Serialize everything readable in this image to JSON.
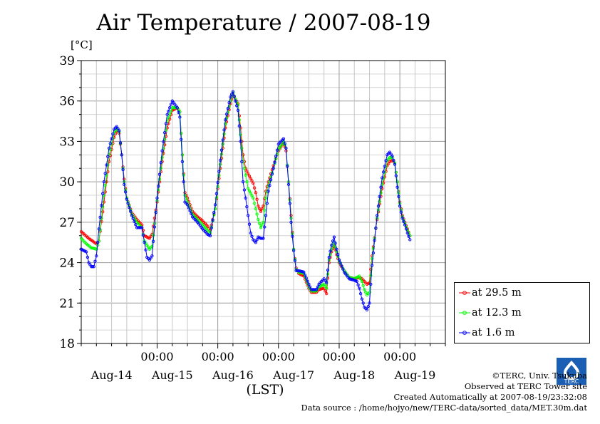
{
  "title": "Air Temperature / 2007-08-19",
  "y_unit": "[°C]",
  "x_unit": "(LST)",
  "credits": [
    "©TERC, Univ. Tsukuba",
    "Observed at TERC Tower site",
    "Created Automatically at 2007-08-19/23:32:08",
    "Data source : /home/hojyo/new/TERC-data/sorted_data/MET.30m.dat"
  ],
  "logo_text": "TERC",
  "chart_data": {
    "type": "line",
    "title": "Air Temperature / 2007-08-19",
    "ylabel": "[°C]",
    "xlabel": "(LST)",
    "ylim": [
      18,
      39
    ],
    "yticks": [
      18,
      21,
      24,
      27,
      30,
      33,
      36,
      39
    ],
    "xlim": [
      0,
      144
    ],
    "x_unit_note": "hours from Aug-13 18:00 LST",
    "x_tick_labels": [
      "00:00",
      "00:00",
      "00:00",
      "00:00",
      "00:00"
    ],
    "x_tick_positions": [
      30,
      54,
      78,
      102,
      126
    ],
    "date_labels": [
      "Aug-14",
      "Aug-15",
      "Aug-16",
      "Aug-17",
      "Aug-18",
      "Aug-19"
    ],
    "date_label_positions": [
      12,
      36,
      60,
      84,
      108,
      132
    ],
    "grid": true,
    "legend_position": "bottom-right, outside plot",
    "series": [
      {
        "name": "at 29.5 m",
        "color": "#ff0000",
        "points": [
          [
            0,
            26.3
          ],
          [
            3,
            25.8
          ],
          [
            6,
            25.4
          ],
          [
            7,
            25.6
          ],
          [
            9,
            28.5
          ],
          [
            11,
            31.5
          ],
          [
            13,
            33.3
          ],
          [
            14,
            33.8
          ],
          [
            15,
            33.6
          ],
          [
            16,
            32.0
          ],
          [
            17,
            30.2
          ],
          [
            18,
            28.8
          ],
          [
            20,
            27.7
          ],
          [
            22,
            27.2
          ],
          [
            24,
            26.8
          ],
          [
            25,
            26.0
          ],
          [
            27,
            25.8
          ],
          [
            28,
            26.1
          ],
          [
            30,
            28.5
          ],
          [
            32,
            31.5
          ],
          [
            34,
            34.0
          ],
          [
            36,
            35.3
          ],
          [
            38,
            35.5
          ],
          [
            39,
            35.2
          ],
          [
            40,
            32.0
          ],
          [
            41,
            29.2
          ],
          [
            42,
            28.8
          ],
          [
            44,
            27.8
          ],
          [
            46,
            27.4
          ],
          [
            48,
            27.1
          ],
          [
            50,
            26.7
          ],
          [
            51,
            26.4
          ],
          [
            53,
            28.0
          ],
          [
            55,
            31.0
          ],
          [
            57,
            34.0
          ],
          [
            59,
            35.8
          ],
          [
            60,
            36.5
          ],
          [
            62,
            35.8
          ],
          [
            63,
            34.0
          ],
          [
            64,
            32.0
          ],
          [
            65,
            31.0
          ],
          [
            66,
            30.6
          ],
          [
            68,
            29.9
          ],
          [
            69,
            29.2
          ],
          [
            70,
            28.2
          ],
          [
            71,
            27.8
          ],
          [
            72,
            28.2
          ],
          [
            73,
            29.3
          ],
          [
            74,
            30.0
          ],
          [
            76,
            31.2
          ],
          [
            78,
            32.3
          ],
          [
            80,
            32.9
          ],
          [
            81,
            32.3
          ],
          [
            82,
            30.0
          ],
          [
            83,
            27.5
          ],
          [
            84,
            25.0
          ],
          [
            85,
            23.6
          ],
          [
            86,
            23.2
          ],
          [
            88,
            23.0
          ],
          [
            90,
            22.1
          ],
          [
            91,
            21.8
          ],
          [
            93,
            21.8
          ],
          [
            94,
            22.0
          ],
          [
            96,
            22.1
          ],
          [
            97,
            21.7
          ],
          [
            98,
            24.0
          ],
          [
            99,
            24.8
          ],
          [
            100,
            25.3
          ],
          [
            101,
            24.6
          ],
          [
            102,
            24.0
          ],
          [
            104,
            23.4
          ],
          [
            106,
            22.9
          ],
          [
            108,
            22.8
          ],
          [
            110,
            22.9
          ],
          [
            111,
            22.8
          ],
          [
            112,
            22.6
          ],
          [
            113,
            22.4
          ],
          [
            114,
            22.5
          ],
          [
            115,
            24.5
          ],
          [
            117,
            27.2
          ],
          [
            119,
            29.5
          ],
          [
            121,
            31.2
          ],
          [
            122,
            31.5
          ],
          [
            123,
            31.6
          ],
          [
            124,
            31.4
          ],
          [
            125,
            30.0
          ],
          [
            126,
            28.5
          ],
          [
            127,
            27.5
          ],
          [
            128,
            27.0
          ],
          [
            129,
            26.5
          ],
          [
            130,
            26.0
          ]
        ]
      },
      {
        "name": "at 12.3 m",
        "color": "#00ff00",
        "points": [
          [
            0,
            25.8
          ],
          [
            2,
            25.4
          ],
          [
            4,
            25.1
          ],
          [
            6,
            25.0
          ],
          [
            7,
            25.6
          ],
          [
            9,
            29.0
          ],
          [
            11,
            32.0
          ],
          [
            13,
            33.6
          ],
          [
            14,
            34.0
          ],
          [
            15,
            33.7
          ],
          [
            16,
            32.0
          ],
          [
            17,
            30.0
          ],
          [
            18,
            28.8
          ],
          [
            20,
            27.6
          ],
          [
            22,
            27.0
          ],
          [
            24,
            26.6
          ],
          [
            25,
            25.6
          ],
          [
            27,
            25.0
          ],
          [
            28,
            25.2
          ],
          [
            30,
            28.6
          ],
          [
            32,
            31.8
          ],
          [
            34,
            34.5
          ],
          [
            36,
            35.5
          ],
          [
            38,
            35.5
          ],
          [
            39,
            35.2
          ],
          [
            40,
            32.0
          ],
          [
            41,
            29.0
          ],
          [
            42,
            28.5
          ],
          [
            44,
            27.6
          ],
          [
            46,
            27.2
          ],
          [
            48,
            26.8
          ],
          [
            50,
            26.4
          ],
          [
            51,
            26.2
          ],
          [
            53,
            28.0
          ],
          [
            55,
            31.3
          ],
          [
            57,
            34.3
          ],
          [
            59,
            36.0
          ],
          [
            60,
            36.6
          ],
          [
            62,
            35.7
          ],
          [
            63,
            33.5
          ],
          [
            64,
            31.5
          ],
          [
            65,
            30.5
          ],
          [
            66,
            29.5
          ],
          [
            68,
            28.8
          ],
          [
            69,
            28.0
          ],
          [
            70,
            27.2
          ],
          [
            71,
            26.6
          ],
          [
            72,
            27.0
          ],
          [
            73,
            28.8
          ],
          [
            74,
            29.7
          ],
          [
            76,
            31.0
          ],
          [
            78,
            32.4
          ],
          [
            80,
            33.0
          ],
          [
            81,
            32.5
          ],
          [
            82,
            30.0
          ],
          [
            83,
            27.3
          ],
          [
            84,
            25.0
          ],
          [
            85,
            23.5
          ],
          [
            86,
            23.3
          ],
          [
            88,
            23.2
          ],
          [
            90,
            22.2
          ],
          [
            91,
            21.9
          ],
          [
            93,
            21.9
          ],
          [
            94,
            22.2
          ],
          [
            96,
            22.4
          ],
          [
            97,
            22.1
          ],
          [
            98,
            24.2
          ],
          [
            99,
            25.0
          ],
          [
            100,
            25.5
          ],
          [
            101,
            24.8
          ],
          [
            102,
            24.1
          ],
          [
            104,
            23.4
          ],
          [
            106,
            22.9
          ],
          [
            108,
            22.8
          ],
          [
            110,
            23.0
          ],
          [
            111,
            22.6
          ],
          [
            112,
            22.0
          ],
          [
            113,
            21.6
          ],
          [
            114,
            21.8
          ],
          [
            115,
            24.3
          ],
          [
            117,
            27.3
          ],
          [
            119,
            29.8
          ],
          [
            121,
            31.6
          ],
          [
            122,
            31.8
          ],
          [
            123,
            31.8
          ],
          [
            124,
            31.4
          ],
          [
            125,
            30.0
          ],
          [
            126,
            28.4
          ],
          [
            127,
            27.4
          ],
          [
            128,
            26.9
          ],
          [
            129,
            26.4
          ],
          [
            130,
            26.0
          ]
        ]
      },
      {
        "name": "at 1.6 m",
        "color": "#0000ff",
        "points": [
          [
            0,
            25.0
          ],
          [
            2,
            24.8
          ],
          [
            3,
            24.0
          ],
          [
            4,
            23.7
          ],
          [
            5,
            23.7
          ],
          [
            6,
            24.5
          ],
          [
            7,
            26.5
          ],
          [
            9,
            30.0
          ],
          [
            11,
            32.5
          ],
          [
            13,
            33.9
          ],
          [
            14,
            34.1
          ],
          [
            15,
            33.8
          ],
          [
            16,
            32.0
          ],
          [
            17,
            29.8
          ],
          [
            18,
            28.7
          ],
          [
            20,
            27.5
          ],
          [
            22,
            26.6
          ],
          [
            24,
            26.6
          ],
          [
            25,
            25.5
          ],
          [
            26,
            24.4
          ],
          [
            27,
            24.2
          ],
          [
            28,
            24.5
          ],
          [
            30,
            28.8
          ],
          [
            32,
            32.3
          ],
          [
            34,
            35.0
          ],
          [
            36,
            36.0
          ],
          [
            38,
            35.5
          ],
          [
            39,
            34.8
          ],
          [
            40,
            31.5
          ],
          [
            41,
            28.5
          ],
          [
            42,
            28.3
          ],
          [
            44,
            27.4
          ],
          [
            46,
            27.0
          ],
          [
            48,
            26.5
          ],
          [
            50,
            26.1
          ],
          [
            51,
            26.0
          ],
          [
            53,
            28.3
          ],
          [
            55,
            31.6
          ],
          [
            57,
            34.6
          ],
          [
            59,
            36.3
          ],
          [
            60,
            36.7
          ],
          [
            61,
            36.0
          ],
          [
            62,
            35.3
          ],
          [
            63,
            33.0
          ],
          [
            64,
            30.0
          ],
          [
            65,
            28.8
          ],
          [
            66,
            27.5
          ],
          [
            67,
            26.2
          ],
          [
            68,
            25.7
          ],
          [
            69,
            25.5
          ],
          [
            70,
            25.9
          ],
          [
            71,
            25.8
          ],
          [
            72,
            25.8
          ],
          [
            73,
            27.5
          ],
          [
            74,
            29.3
          ],
          [
            76,
            31.0
          ],
          [
            78,
            32.8
          ],
          [
            80,
            33.2
          ],
          [
            81,
            32.5
          ],
          [
            82,
            29.8
          ],
          [
            83,
            27.0
          ],
          [
            84,
            24.9
          ],
          [
            85,
            23.4
          ],
          [
            86,
            23.4
          ],
          [
            88,
            23.3
          ],
          [
            90,
            22.4
          ],
          [
            91,
            22.0
          ],
          [
            93,
            22.0
          ],
          [
            94,
            22.4
          ],
          [
            96,
            22.8
          ],
          [
            97,
            22.5
          ],
          [
            98,
            24.4
          ],
          [
            99,
            25.3
          ],
          [
            100,
            25.9
          ],
          [
            101,
            25.0
          ],
          [
            102,
            24.2
          ],
          [
            104,
            23.3
          ],
          [
            106,
            22.8
          ],
          [
            108,
            22.7
          ],
          [
            109,
            22.6
          ],
          [
            110,
            22.1
          ],
          [
            111,
            21.3
          ],
          [
            112,
            20.7
          ],
          [
            113,
            20.5
          ],
          [
            114,
            21.0
          ],
          [
            115,
            23.8
          ],
          [
            117,
            27.5
          ],
          [
            119,
            30.3
          ],
          [
            121,
            32.0
          ],
          [
            122,
            32.2
          ],
          [
            123,
            31.9
          ],
          [
            124,
            31.3
          ],
          [
            125,
            29.6
          ],
          [
            126,
            28.2
          ],
          [
            127,
            27.3
          ],
          [
            128,
            26.8
          ],
          [
            129,
            26.2
          ],
          [
            130,
            25.7
          ]
        ]
      }
    ]
  }
}
